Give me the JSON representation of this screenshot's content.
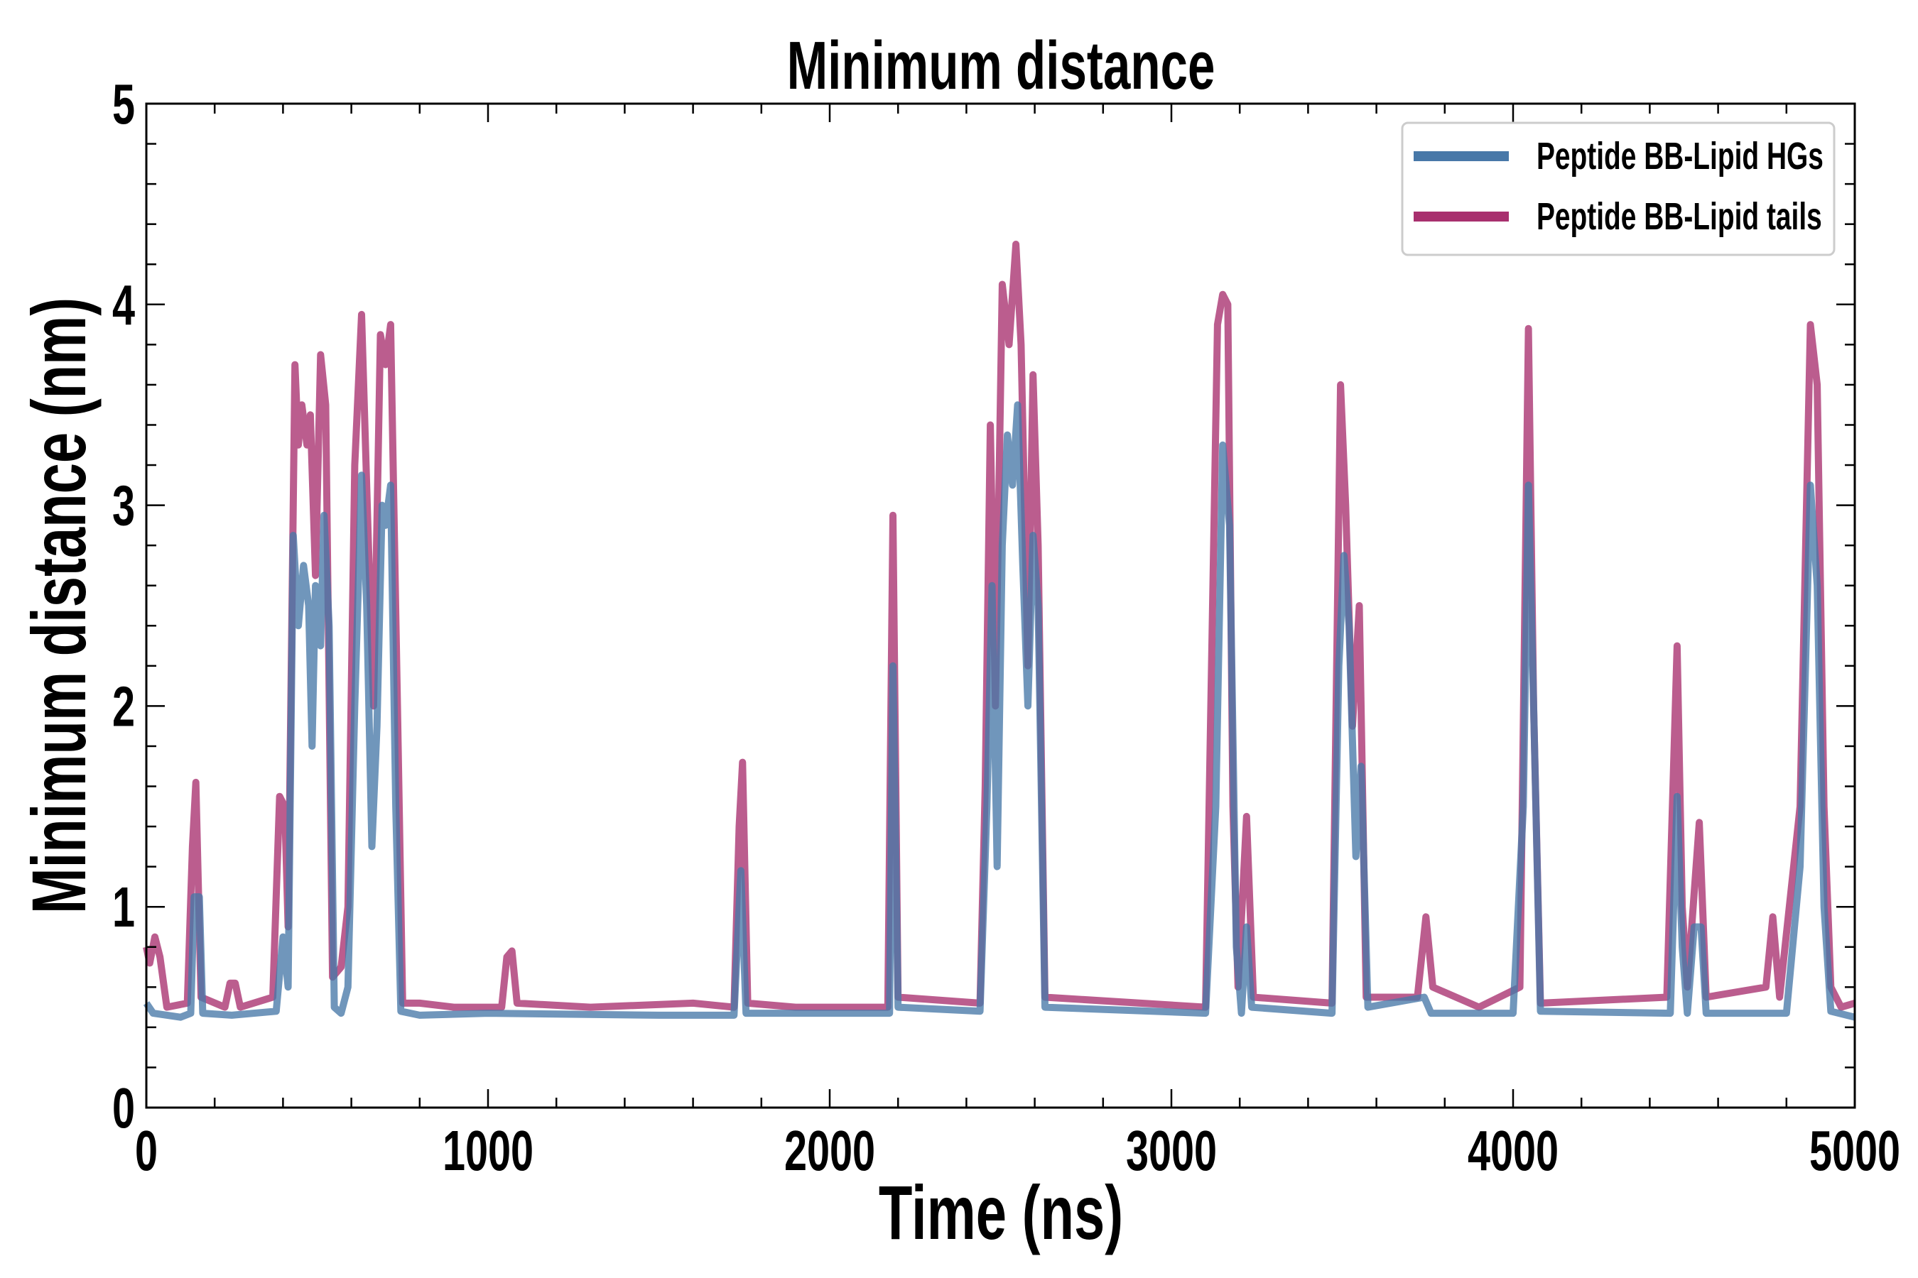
{
  "chart_data": {
    "type": "line",
    "title": "Minimum distance",
    "xlabel": "Time (ns)",
    "ylabel": "Minimum distance (nm)",
    "xlim": [
      0,
      5000
    ],
    "ylim": [
      0,
      5
    ],
    "xticks": [
      "0",
      "1000",
      "2000",
      "3000",
      "4000",
      "5000"
    ],
    "yticks": [
      "0",
      "1",
      "2",
      "3",
      "4",
      "5"
    ],
    "grid": false,
    "legend_position": "top-right",
    "series": [
      {
        "name": "Peptide BB-Lipid tails",
        "color": "#a8306e",
        "points": [
          [
            0,
            0.8
          ],
          [
            10,
            0.72
          ],
          [
            25,
            0.85
          ],
          [
            40,
            0.75
          ],
          [
            60,
            0.5
          ],
          [
            120,
            0.52
          ],
          [
            135,
            1.3
          ],
          [
            145,
            1.62
          ],
          [
            160,
            0.55
          ],
          [
            230,
            0.5
          ],
          [
            245,
            0.62
          ],
          [
            260,
            0.62
          ],
          [
            275,
            0.5
          ],
          [
            370,
            0.55
          ],
          [
            390,
            1.55
          ],
          [
            405,
            1.5
          ],
          [
            415,
            0.9
          ],
          [
            435,
            3.7
          ],
          [
            445,
            3.3
          ],
          [
            455,
            3.5
          ],
          [
            470,
            3.3
          ],
          [
            480,
            3.45
          ],
          [
            495,
            2.65
          ],
          [
            510,
            3.75
          ],
          [
            525,
            3.5
          ],
          [
            545,
            0.65
          ],
          [
            570,
            0.7
          ],
          [
            590,
            1.0
          ],
          [
            610,
            3.2
          ],
          [
            630,
            3.95
          ],
          [
            650,
            2.8
          ],
          [
            665,
            2.0
          ],
          [
            685,
            3.85
          ],
          [
            700,
            3.7
          ],
          [
            715,
            3.9
          ],
          [
            735,
            2.0
          ],
          [
            750,
            0.52
          ],
          [
            800,
            0.52
          ],
          [
            900,
            0.5
          ],
          [
            1040,
            0.5
          ],
          [
            1055,
            0.75
          ],
          [
            1070,
            0.78
          ],
          [
            1085,
            0.52
          ],
          [
            1300,
            0.5
          ],
          [
            1600,
            0.52
          ],
          [
            1720,
            0.5
          ],
          [
            1735,
            1.4
          ],
          [
            1745,
            1.72
          ],
          [
            1760,
            0.52
          ],
          [
            1900,
            0.5
          ],
          [
            2170,
            0.5
          ],
          [
            2185,
            2.95
          ],
          [
            2200,
            0.55
          ],
          [
            2440,
            0.52
          ],
          [
            2455,
            1.6
          ],
          [
            2470,
            3.4
          ],
          [
            2485,
            2.0
          ],
          [
            2505,
            4.1
          ],
          [
            2525,
            3.8
          ],
          [
            2545,
            4.3
          ],
          [
            2560,
            3.8
          ],
          [
            2580,
            2.2
          ],
          [
            2595,
            3.65
          ],
          [
            2610,
            2.8
          ],
          [
            2630,
            0.55
          ],
          [
            3100,
            0.5
          ],
          [
            3135,
            3.9
          ],
          [
            3150,
            4.05
          ],
          [
            3165,
            4.0
          ],
          [
            3180,
            1.5
          ],
          [
            3195,
            0.6
          ],
          [
            3220,
            1.45
          ],
          [
            3240,
            0.55
          ],
          [
            3470,
            0.52
          ],
          [
            3495,
            3.6
          ],
          [
            3510,
            3.0
          ],
          [
            3530,
            1.9
          ],
          [
            3550,
            2.5
          ],
          [
            3570,
            0.55
          ],
          [
            3720,
            0.55
          ],
          [
            3745,
            0.95
          ],
          [
            3765,
            0.6
          ],
          [
            3900,
            0.5
          ],
          [
            4020,
            0.6
          ],
          [
            4045,
            3.88
          ],
          [
            4060,
            2.0
          ],
          [
            4080,
            0.52
          ],
          [
            4450,
            0.55
          ],
          [
            4480,
            2.3
          ],
          [
            4495,
            1.0
          ],
          [
            4510,
            0.6
          ],
          [
            4545,
            1.42
          ],
          [
            4565,
            0.55
          ],
          [
            4740,
            0.6
          ],
          [
            4760,
            0.95
          ],
          [
            4780,
            0.55
          ],
          [
            4840,
            1.5
          ],
          [
            4870,
            3.9
          ],
          [
            4890,
            3.6
          ],
          [
            4910,
            1.5
          ],
          [
            4930,
            0.6
          ],
          [
            4960,
            0.5
          ],
          [
            5000,
            0.52
          ]
        ]
      },
      {
        "name": "Peptide BB-Lipid HGs",
        "color": "#4878a8",
        "points": [
          [
            0,
            0.52
          ],
          [
            20,
            0.47
          ],
          [
            100,
            0.45
          ],
          [
            130,
            0.47
          ],
          [
            140,
            1.05
          ],
          [
            155,
            1.05
          ],
          [
            165,
            0.47
          ],
          [
            250,
            0.46
          ],
          [
            380,
            0.48
          ],
          [
            400,
            0.85
          ],
          [
            415,
            0.6
          ],
          [
            430,
            2.85
          ],
          [
            445,
            2.4
          ],
          [
            460,
            2.7
          ],
          [
            475,
            2.5
          ],
          [
            485,
            1.8
          ],
          [
            495,
            2.6
          ],
          [
            510,
            2.3
          ],
          [
            520,
            2.95
          ],
          [
            535,
            2.4
          ],
          [
            550,
            0.5
          ],
          [
            570,
            0.47
          ],
          [
            590,
            0.6
          ],
          [
            610,
            2.0
          ],
          [
            630,
            3.15
          ],
          [
            645,
            2.5
          ],
          [
            660,
            1.3
          ],
          [
            675,
            1.9
          ],
          [
            690,
            3.0
          ],
          [
            700,
            2.9
          ],
          [
            715,
            3.1
          ],
          [
            730,
            1.5
          ],
          [
            745,
            0.48
          ],
          [
            800,
            0.46
          ],
          [
            1000,
            0.47
          ],
          [
            1500,
            0.46
          ],
          [
            1720,
            0.46
          ],
          [
            1740,
            1.18
          ],
          [
            1755,
            0.47
          ],
          [
            2150,
            0.47
          ],
          [
            2175,
            0.47
          ],
          [
            2185,
            2.2
          ],
          [
            2200,
            0.5
          ],
          [
            2440,
            0.48
          ],
          [
            2460,
            1.5
          ],
          [
            2475,
            2.6
          ],
          [
            2490,
            1.2
          ],
          [
            2505,
            2.8
          ],
          [
            2520,
            3.35
          ],
          [
            2535,
            3.1
          ],
          [
            2550,
            3.5
          ],
          [
            2565,
            2.7
          ],
          [
            2580,
            2.0
          ],
          [
            2595,
            2.85
          ],
          [
            2610,
            2.5
          ],
          [
            2630,
            0.5
          ],
          [
            3100,
            0.47
          ],
          [
            3130,
            1.5
          ],
          [
            3150,
            3.3
          ],
          [
            3170,
            2.9
          ],
          [
            3190,
            0.8
          ],
          [
            3205,
            0.47
          ],
          [
            3220,
            0.9
          ],
          [
            3235,
            0.5
          ],
          [
            3470,
            0.47
          ],
          [
            3490,
            2.2
          ],
          [
            3505,
            2.75
          ],
          [
            3520,
            2.4
          ],
          [
            3540,
            1.25
          ],
          [
            3555,
            1.7
          ],
          [
            3575,
            0.5
          ],
          [
            3740,
            0.55
          ],
          [
            3760,
            0.47
          ],
          [
            4000,
            0.47
          ],
          [
            4030,
            1.5
          ],
          [
            4045,
            3.1
          ],
          [
            4060,
            2.0
          ],
          [
            4080,
            0.48
          ],
          [
            4460,
            0.47
          ],
          [
            4480,
            1.55
          ],
          [
            4495,
            0.8
          ],
          [
            4510,
            0.47
          ],
          [
            4530,
            0.9
          ],
          [
            4550,
            0.9
          ],
          [
            4565,
            0.47
          ],
          [
            4800,
            0.47
          ],
          [
            4840,
            1.2
          ],
          [
            4870,
            3.1
          ],
          [
            4890,
            2.6
          ],
          [
            4910,
            1.0
          ],
          [
            4930,
            0.48
          ],
          [
            5000,
            0.45
          ]
        ]
      }
    ],
    "legend": [
      {
        "label": "Peptide BB-Lipid HGs",
        "color": "#4878a8"
      },
      {
        "label": "Peptide BB-Lipid tails",
        "color": "#a8306e"
      }
    ]
  }
}
